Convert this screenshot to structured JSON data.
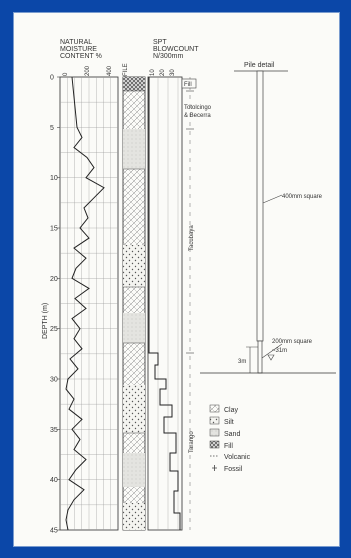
{
  "headers": {
    "moisture": [
      "NATURAL",
      "MOISTURE",
      "CONTENT %"
    ],
    "moisture_ticks": [
      "0",
      "200",
      "400"
    ],
    "profile": "PROFILE",
    "spt": [
      "SPT",
      "BLOWCOUNT",
      "N/300mm"
    ],
    "spt_ticks": [
      "10",
      "20",
      "30"
    ],
    "depth_label": "DEPTH (m)"
  },
  "depth_ticks": [
    "0",
    "5",
    "10",
    "15",
    "20",
    "25",
    "30",
    "35",
    "40",
    "45"
  ],
  "strata": [
    {
      "label": "Fill"
    },
    {
      "label": "Totolcingo & Becerra"
    },
    {
      "label": "Tacubaya"
    },
    {
      "label": "Tarango"
    }
  ],
  "pile": {
    "title": "Pile detail",
    "upper": "400mm square",
    "lower": "200mm square",
    "level": "~31m",
    "dim": "3m"
  },
  "legend": [
    {
      "icon": "clay-pattern-icon",
      "label": "Clay"
    },
    {
      "icon": "silt-pattern-icon",
      "label": "Silt"
    },
    {
      "icon": "sand-pattern-icon",
      "label": "Sand"
    },
    {
      "icon": "fill-pattern-icon",
      "label": "Fill"
    },
    {
      "icon": "volcanic-symbol-icon",
      "label": "Volcanic"
    },
    {
      "icon": "fossil-symbol-icon",
      "label": "Fossil"
    }
  ]
}
